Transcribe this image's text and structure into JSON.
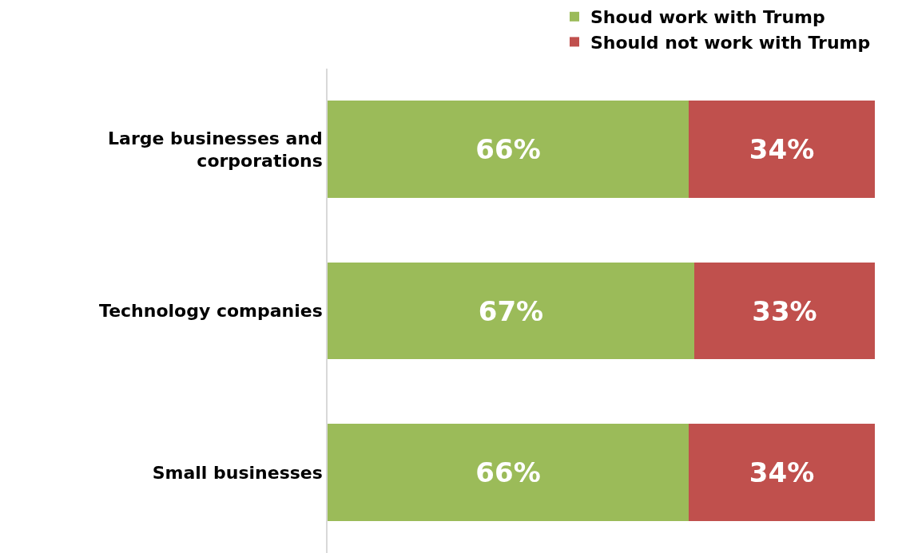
{
  "chart_data": {
    "type": "bar",
    "orientation": "horizontal",
    "stacked": true,
    "categories": [
      "Large businesses and corporations",
      "Technology companies",
      "Small businesses"
    ],
    "series": [
      {
        "name": "Shoud work with Trump",
        "color": "#9bbb59",
        "values": [
          66,
          67,
          66
        ],
        "value_labels": [
          "66%",
          "67%",
          "66%"
        ]
      },
      {
        "name": "Should not work with Trump",
        "color": "#c0504d",
        "values": [
          34,
          33,
          34
        ],
        "value_labels": [
          "34%",
          "33%",
          "34%"
        ]
      }
    ],
    "xlim": [
      0,
      100
    ],
    "grid": false,
    "legend": "top",
    "tick_labels": "y"
  }
}
